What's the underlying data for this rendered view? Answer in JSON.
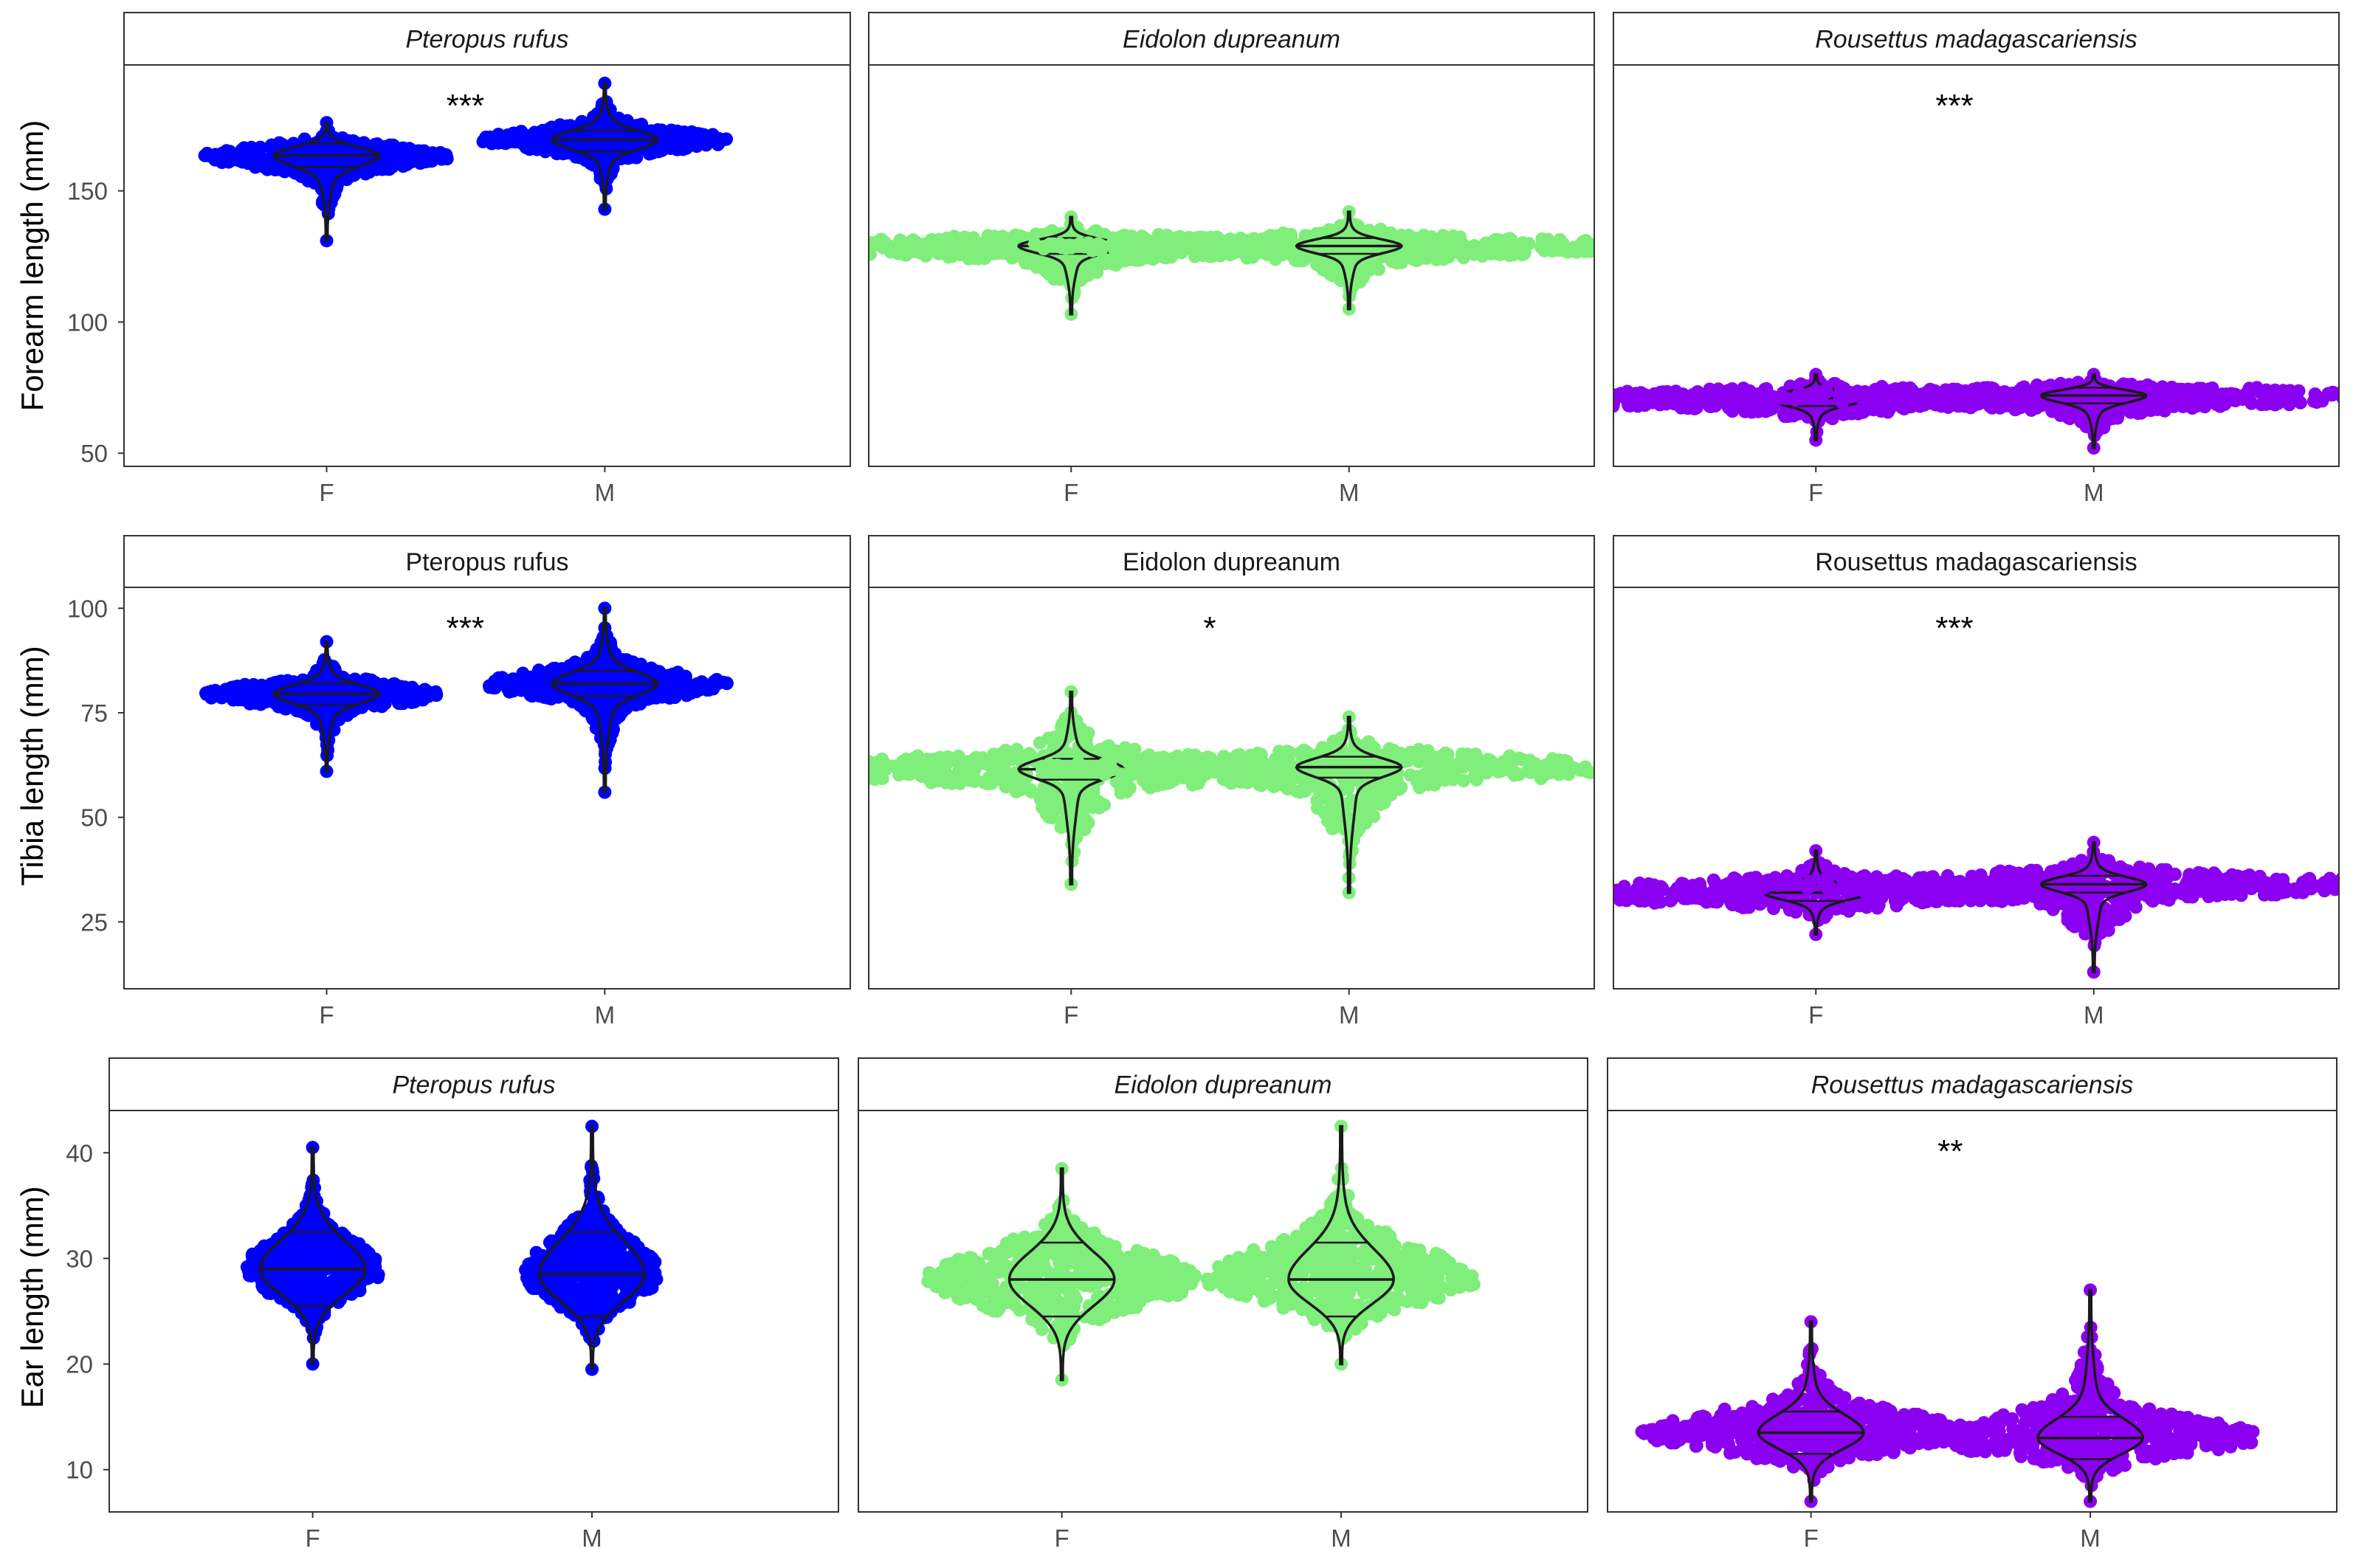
{
  "colors": {
    "Pteropus rufus": "#0000ff",
    "Eidolon dupreanum": "#80ee7a",
    "Rousettus madagascariensis": "#8b00f0",
    "outline": "#1a1a1a"
  },
  "chart_data": [
    {
      "type": "violin",
      "panel_row": 1,
      "ylabel": "Forearm length (mm)",
      "strip_italic": true,
      "ylim": [
        45,
        198
      ],
      "yticks": [
        50,
        100,
        150
      ],
      "categories": [
        "F",
        "M"
      ],
      "facets": [
        {
          "species": "Pteropus rufus",
          "sig": "***",
          "groups": {
            "F": {
              "median": 163.5,
              "q1": 159,
              "q3": 168,
              "min": 131,
              "max": 176,
              "spread": 1.0
            },
            "M": {
              "median": 169.5,
              "q1": 165,
              "q3": 173,
              "min": 143,
              "max": 191,
              "spread": 1.0
            }
          }
        },
        {
          "species": "Eidolon dupreanum",
          "sig": "",
          "groups": {
            "F": {
              "median": 129,
              "q1": 126,
              "q3": 132,
              "min": 103,
              "max": 140,
              "spread": 2.6
            },
            "M": {
              "median": 129,
              "q1": 126,
              "q3": 132,
              "min": 105,
              "max": 142,
              "spread": 2.6
            }
          }
        },
        {
          "species": "Rousettus madagascariensis",
          "sig": "***",
          "groups": {
            "F": {
              "median": 71,
              "q1": 68,
              "q3": 74,
              "min": 55,
              "max": 80,
              "spread": 3.0
            },
            "M": {
              "median": 72,
              "q1": 69,
              "q3": 75,
              "min": 52,
              "max": 80,
              "spread": 3.0
            }
          }
        }
      ]
    },
    {
      "type": "violin",
      "panel_row": 2,
      "ylabel": "Tibia length (mm)",
      "strip_italic": false,
      "ylim": [
        9,
        105
      ],
      "yticks": [
        25,
        50,
        75,
        100
      ],
      "categories": [
        "F",
        "M"
      ],
      "facets": [
        {
          "species": "Pteropus rufus",
          "sig": "***",
          "groups": {
            "F": {
              "median": 79.5,
              "q1": 77,
              "q3": 82,
              "min": 61,
              "max": 92,
              "spread": 1.0
            },
            "M": {
              "median": 82,
              "q1": 79,
              "q3": 85,
              "min": 56,
              "max": 100,
              "spread": 1.0
            }
          }
        },
        {
          "species": "Eidolon dupreanum",
          "sig": "*",
          "groups": {
            "F": {
              "median": 61.5,
              "q1": 59,
              "q3": 64,
              "min": 34,
              "max": 80,
              "spread": 2.6
            },
            "M": {
              "median": 62,
              "q1": 59.5,
              "q3": 64.5,
              "min": 32,
              "max": 74,
              "spread": 2.6
            }
          }
        },
        {
          "species": "Rousettus madagascariensis",
          "sig": "***",
          "groups": {
            "F": {
              "median": 32,
              "q1": 30,
              "q3": 34,
              "min": 22,
              "max": 42,
              "spread": 3.0
            },
            "M": {
              "median": 34,
              "q1": 32,
              "q3": 36,
              "min": 13,
              "max": 44,
              "spread": 3.0
            }
          }
        }
      ]
    },
    {
      "type": "violin",
      "panel_row": 3,
      "ylabel": "Ear length (mm)",
      "strip_italic": true,
      "ylim": [
        6,
        44
      ],
      "yticks": [
        10,
        20,
        30,
        40
      ],
      "categories": [
        "F",
        "M"
      ],
      "facets": [
        {
          "species": "Pteropus rufus",
          "sig": "",
          "groups": {
            "F": {
              "median": 29,
              "q1": 25.5,
              "q3": 32.5,
              "min": 20,
              "max": 40.5,
              "spread": 0.55
            },
            "M": {
              "median": 28.5,
              "q1": 24.5,
              "q3": 32.5,
              "min": 19.5,
              "max": 42.5,
              "spread": 0.55
            }
          }
        },
        {
          "species": "Eidolon dupreanum",
          "sig": "",
          "groups": {
            "F": {
              "median": 28,
              "q1": 24.5,
              "q3": 31.5,
              "min": 18.5,
              "max": 38.5,
              "spread": 1.1
            },
            "M": {
              "median": 28,
              "q1": 24.5,
              "q3": 31.5,
              "min": 20,
              "max": 42.5,
              "spread": 1.1
            }
          }
        },
        {
          "species": "Rousettus madagascariensis",
          "sig": "**",
          "groups": {
            "F": {
              "median": 13.5,
              "q1": 11.5,
              "q3": 15.5,
              "min": 7,
              "max": 24,
              "spread": 1.4
            },
            "M": {
              "median": 13,
              "q1": 11,
              "q3": 15,
              "min": 7,
              "max": 27,
              "spread": 1.4
            }
          }
        }
      ]
    }
  ]
}
